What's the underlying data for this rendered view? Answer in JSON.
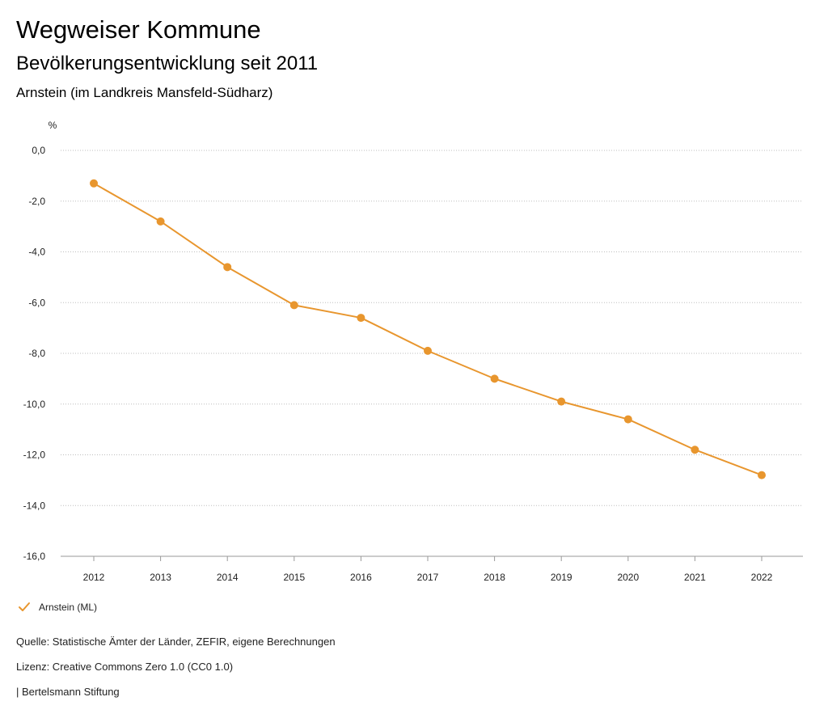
{
  "header": {
    "title": "Wegweiser Kommune",
    "subtitle": "Bevölkerungsentwicklung seit 2011",
    "place": "Arnstein (im Landkreis Mansfeld-Südharz)"
  },
  "chart_data": {
    "type": "line",
    "ylabel": "%",
    "x": [
      "2012",
      "2013",
      "2014",
      "2015",
      "2016",
      "2017",
      "2018",
      "2019",
      "2020",
      "2021",
      "2022"
    ],
    "series": [
      {
        "name": "Arnstein (ML)",
        "color": "#e8962e",
        "values": [
          -1.3,
          -2.8,
          -4.6,
          -6.1,
          -6.6,
          -7.9,
          -9.0,
          -9.9,
          -10.6,
          -11.8,
          -12.8
        ]
      }
    ],
    "ylim": [
      -16,
      0
    ],
    "yticks": [
      "0,0",
      "-2,0",
      "-4,0",
      "-6,0",
      "-8,0",
      "-10,0",
      "-12,0",
      "-14,0",
      "-16,0"
    ],
    "grid": true,
    "legend_position": "bottom-left"
  },
  "footer": {
    "source": "Quelle: Statistische Ämter der Länder, ZEFIR, eigene Berechnungen",
    "license": "Lizenz: Creative Commons Zero 1.0 (CC0 1.0)",
    "publisher": "| Bertelsmann Stiftung"
  }
}
